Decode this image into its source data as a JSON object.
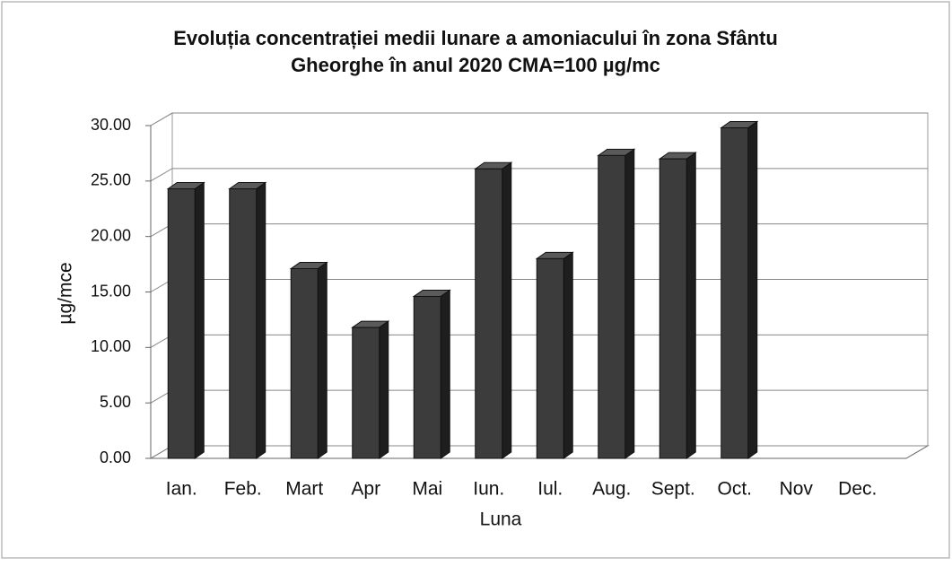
{
  "chart_data": {
    "type": "bar3d",
    "title": [
      "Evoluția concentrației medii lunare a amoniacului în zona Sfântu",
      "Gheorghe în anul 2020    CMA=100 µg/mc"
    ],
    "x_label": "Luna",
    "y_label": "µg/mce",
    "categories": [
      "Ian.",
      "Feb.",
      "Mart",
      "Apr",
      "Mai",
      "Iun.",
      "Iul.",
      "Aug.",
      "Sept.",
      "Oct.",
      "Nov",
      "Dec."
    ],
    "values": [
      24.3,
      24.3,
      17.1,
      11.8,
      14.6,
      26.1,
      18.0,
      27.3,
      27.0,
      29.8,
      null,
      null
    ],
    "color": "#3c3c3c",
    "ylim": [
      0,
      30
    ],
    "yticks": [
      {
        "value": 0,
        "label": "0.00"
      },
      {
        "value": 5,
        "label": "5.00"
      },
      {
        "value": 10,
        "label": "10.00"
      },
      {
        "value": 15,
        "label": "15.00"
      },
      {
        "value": 20,
        "label": "20.00"
      },
      {
        "value": 25,
        "label": "25.00"
      },
      {
        "value": 30,
        "label": "30.00"
      }
    ],
    "grid": true
  }
}
